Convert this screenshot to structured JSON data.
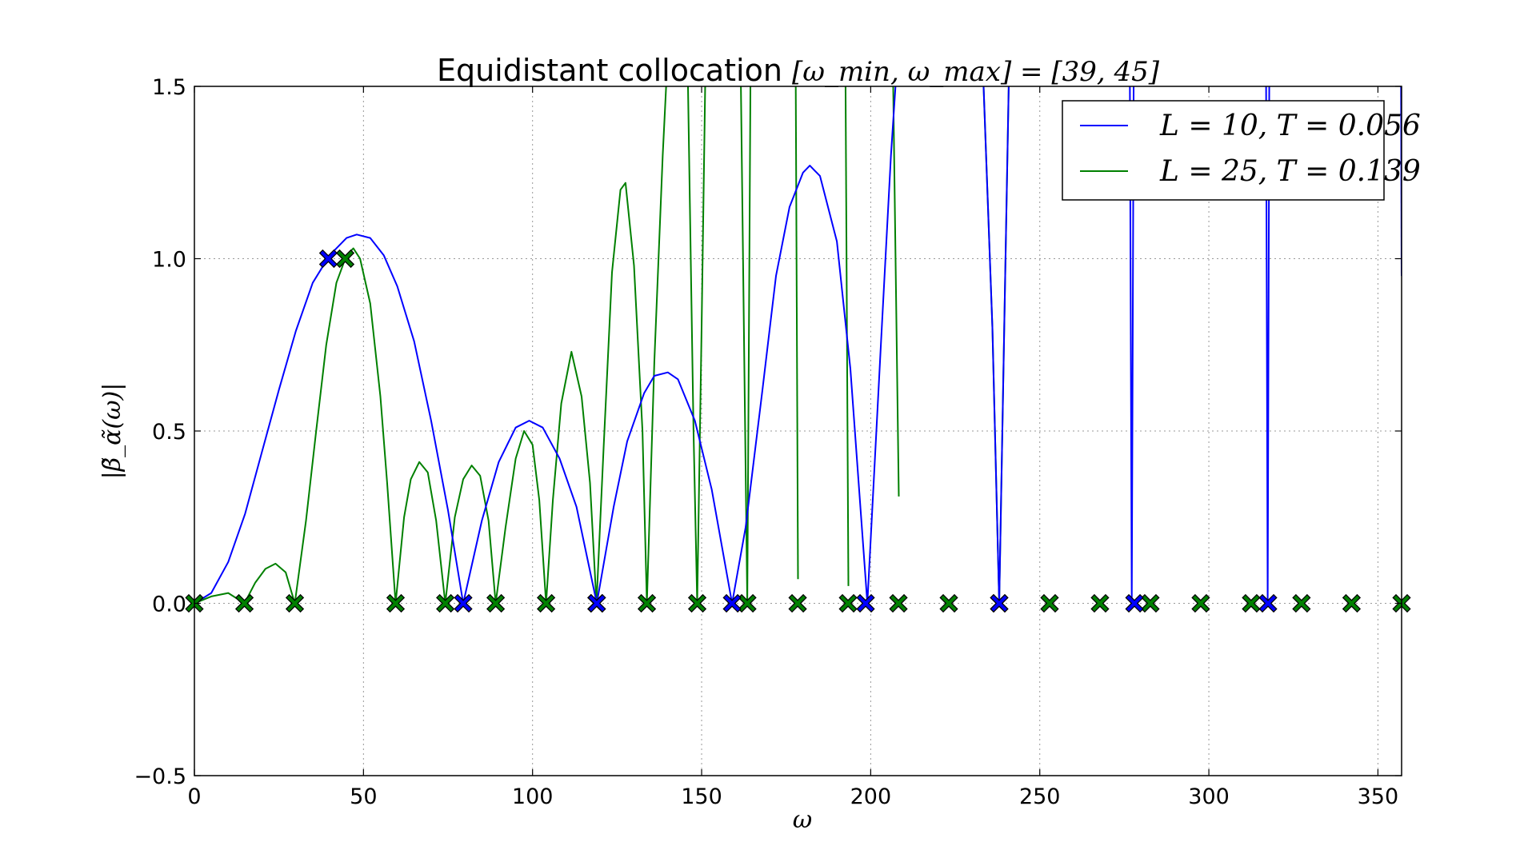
{
  "chart_data": {
    "type": "line",
    "title": "Equidistant collocation",
    "title_math": "[ω_min, ω_max] = [39, 45]",
    "xlabel": "ω",
    "ylabel": "|β̃_α̃(ω)|",
    "xlim": [
      0,
      357
    ],
    "ylim": [
      -0.5,
      1.5
    ],
    "xticks": [
      "0",
      "50",
      "100",
      "150",
      "200",
      "250",
      "300",
      "350"
    ],
    "yticks": [
      "−0.5",
      "0.0",
      "0.5",
      "1.0",
      "1.5"
    ],
    "grid": true,
    "legend_position": "top-right",
    "series": [
      {
        "name": "L = 10, T = 0.056",
        "color": "#0000ff",
        "points": [
          [
            0,
            0
          ],
          [
            5,
            0.03
          ],
          [
            10,
            0.12
          ],
          [
            15,
            0.26
          ],
          [
            20,
            0.44
          ],
          [
            25,
            0.62
          ],
          [
            30,
            0.79
          ],
          [
            35,
            0.93
          ],
          [
            40,
            1.01
          ],
          [
            45,
            1.06
          ],
          [
            48,
            1.07
          ],
          [
            52,
            1.06
          ],
          [
            56,
            1.01
          ],
          [
            60,
            0.92
          ],
          [
            65,
            0.76
          ],
          [
            70,
            0.53
          ],
          [
            75,
            0.27
          ],
          [
            79.5,
            0
          ],
          [
            85,
            0.24
          ],
          [
            90,
            0.41
          ],
          [
            95,
            0.51
          ],
          [
            99,
            0.53
          ],
          [
            103,
            0.51
          ],
          [
            108,
            0.42
          ],
          [
            113,
            0.28
          ],
          [
            119,
            0
          ],
          [
            124,
            0.28
          ],
          [
            128,
            0.47
          ],
          [
            133,
            0.61
          ],
          [
            136,
            0.66
          ],
          [
            140,
            0.67
          ],
          [
            143,
            0.65
          ],
          [
            148,
            0.53
          ],
          [
            153,
            0.33
          ],
          [
            159,
            0
          ],
          [
            163,
            0.22
          ],
          [
            168,
            0.62
          ],
          [
            172,
            0.95
          ],
          [
            176,
            1.15
          ],
          [
            180,
            1.25
          ],
          [
            182,
            1.27
          ],
          [
            185,
            1.24
          ],
          [
            190,
            1.05
          ],
          [
            194,
            0.68
          ],
          [
            199,
            0
          ],
          [
            203,
            0.75
          ],
          [
            206,
            1.3
          ],
          [
            208,
            1.6
          ]
        ],
        "extra_segments": [
          [
            [
              233,
              1.6
            ],
            [
              236,
              0.8
            ],
            [
              238,
              0
            ],
            [
              239.5,
              0.8
            ],
            [
              241,
              1.6
            ]
          ],
          [
            [
              276.6,
              1.6
            ],
            [
              277.2,
              0
            ],
            [
              277.8,
              1.6
            ]
          ],
          [
            [
              316.9,
              1.6
            ],
            [
              317.4,
              0
            ],
            [
              317.9,
              1.6
            ]
          ],
          [
            [
              356.8,
              1.6
            ],
            [
              357,
              0.95
            ]
          ]
        ],
        "markers": [
          [
            39.6,
            1
          ],
          [
            79.5,
            0
          ],
          [
            119,
            0
          ],
          [
            159,
            0
          ],
          [
            198.5,
            0
          ],
          [
            238,
            0
          ],
          [
            278,
            0
          ],
          [
            317.5,
            0
          ]
        ]
      },
      {
        "name": "L = 25, T = 0.139",
        "color": "#008000",
        "points": [
          [
            0,
            0
          ],
          [
            5,
            0.02
          ],
          [
            10,
            0.03
          ],
          [
            14.8,
            0
          ],
          [
            18,
            0.06
          ],
          [
            21,
            0.1
          ],
          [
            24,
            0.115
          ],
          [
            27,
            0.09
          ],
          [
            29.7,
            0
          ],
          [
            33,
            0.24
          ],
          [
            36,
            0.5
          ],
          [
            39,
            0.75
          ],
          [
            42,
            0.93
          ],
          [
            45,
            1.01
          ],
          [
            47,
            1.03
          ],
          [
            49,
            1.0
          ],
          [
            52,
            0.87
          ],
          [
            55,
            0.6
          ],
          [
            57,
            0.35
          ],
          [
            59.5,
            0
          ],
          [
            62,
            0.25
          ],
          [
            64,
            0.36
          ],
          [
            66.5,
            0.41
          ],
          [
            69,
            0.38
          ],
          [
            71.5,
            0.24
          ],
          [
            74.2,
            0
          ],
          [
            77,
            0.25
          ],
          [
            79.5,
            0.36
          ],
          [
            82,
            0.4
          ],
          [
            84.5,
            0.37
          ],
          [
            87,
            0.24
          ],
          [
            89.1,
            0
          ],
          [
            92,
            0.22
          ],
          [
            95,
            0.42
          ],
          [
            97.5,
            0.5
          ],
          [
            100,
            0.46
          ],
          [
            102,
            0.3
          ],
          [
            104,
            0
          ],
          [
            106,
            0.3
          ],
          [
            108.5,
            0.58
          ],
          [
            111.5,
            0.73
          ],
          [
            114.5,
            0.6
          ],
          [
            117,
            0.35
          ],
          [
            118.9,
            0
          ],
          [
            121,
            0.45
          ],
          [
            123.5,
            0.96
          ],
          [
            126,
            1.2
          ],
          [
            127.5,
            1.22
          ],
          [
            130,
            0.98
          ],
          [
            132.5,
            0.5
          ],
          [
            133.8,
            0
          ],
          [
            136,
            0.7
          ],
          [
            138.5,
            1.3
          ],
          [
            140,
            1.6
          ]
        ],
        "extra_segments": [
          [
            [
              145.8,
              1.6
            ],
            [
              147.6,
              0.5
            ],
            [
              148.7,
              0
            ],
            [
              150,
              0.8
            ],
            [
              151.2,
              1.6
            ]
          ],
          [
            [
              161.5,
              1.6
            ],
            [
              163.5,
              0
            ],
            [
              164.5,
              1.6
            ]
          ],
          [
            [
              177.8,
              1.6
            ],
            [
              178.5,
              0.07
            ]
          ],
          [
            [
              192.5,
              1.6
            ],
            [
              193.4,
              0.05
            ]
          ],
          [
            [
              206.5,
              1.6
            ],
            [
              208.3,
              0.31
            ]
          ],
          [
            [
              233,
              1.6
            ],
            [
              236,
              0.8
            ],
            [
              238,
              0
            ],
            [
              239.5,
              0.8
            ],
            [
              241,
              1.6
            ]
          ]
        ],
        "markers": [
          [
            0,
            0
          ],
          [
            14.8,
            0
          ],
          [
            29.7,
            0
          ],
          [
            44.6,
            1
          ],
          [
            59.5,
            0
          ],
          [
            74.2,
            0
          ],
          [
            89.1,
            0
          ],
          [
            104,
            0
          ],
          [
            118.9,
            0
          ],
          [
            133.8,
            0
          ],
          [
            148.7,
            0
          ],
          [
            163.5,
            0
          ],
          [
            178.4,
            0
          ],
          [
            193.3,
            0
          ],
          [
            208.2,
            0
          ],
          [
            223.1,
            0
          ],
          [
            238,
            0
          ],
          [
            252.9,
            0
          ],
          [
            267.8,
            0
          ],
          [
            282.7,
            0
          ],
          [
            297.6,
            0
          ],
          [
            312.5,
            0
          ],
          [
            327.4,
            0
          ],
          [
            342.2,
            0
          ],
          [
            357,
            0
          ]
        ]
      }
    ]
  }
}
